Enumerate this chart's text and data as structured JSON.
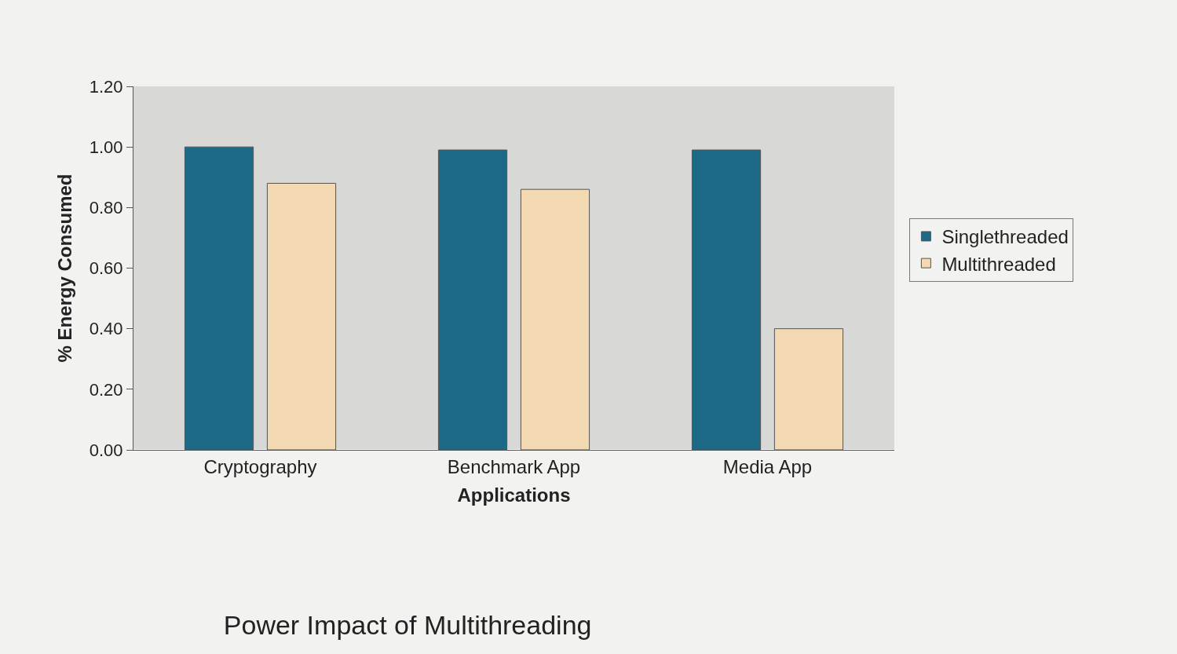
{
  "chart_data": {
    "type": "bar",
    "title": "Power Impact of Multithreading",
    "xlabel": "Applications",
    "ylabel": "% Energy Consumed",
    "categories": [
      "Cryptography",
      "Benchmark App",
      "Media App"
    ],
    "series": [
      {
        "name": "Singlethreaded",
        "color": "#1d6a86",
        "values": [
          1.0,
          0.99,
          0.99
        ]
      },
      {
        "name": "Multithreaded",
        "color": "#f3d9b1",
        "values": [
          0.88,
          0.86,
          0.4
        ]
      }
    ],
    "ylim": [
      0,
      1.2
    ],
    "yticks": [
      {
        "value": 0,
        "label": "0.00"
      },
      {
        "value": 0.2,
        "label": "0.20"
      },
      {
        "value": 0.4,
        "label": "0.40"
      },
      {
        "value": 0.6,
        "label": "0.60"
      },
      {
        "value": 0.8,
        "label": "0.80"
      },
      {
        "value": 1.0,
        "label": "1.00"
      },
      {
        "value": 1.2,
        "label": "1.20"
      }
    ],
    "grid": false,
    "legend": "right"
  }
}
